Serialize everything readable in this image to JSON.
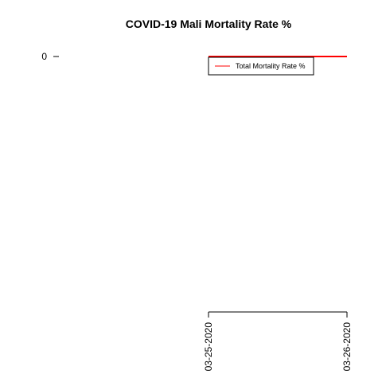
{
  "chart_data": {
    "type": "line",
    "title": "COVID-19 Mali Mortality Rate %",
    "xlabel": "",
    "ylabel": "",
    "x": [
      "03-25-2020",
      "03-26-2020"
    ],
    "series": [
      {
        "name": "Total Mortality Rate %",
        "color": "#ff0000",
        "values": [
          0,
          0
        ]
      }
    ],
    "y_ticks": [
      0
    ],
    "x_ticks": [
      "03-25-2020",
      "03-26-2020"
    ],
    "legend_position": "top-right",
    "grid": false
  }
}
